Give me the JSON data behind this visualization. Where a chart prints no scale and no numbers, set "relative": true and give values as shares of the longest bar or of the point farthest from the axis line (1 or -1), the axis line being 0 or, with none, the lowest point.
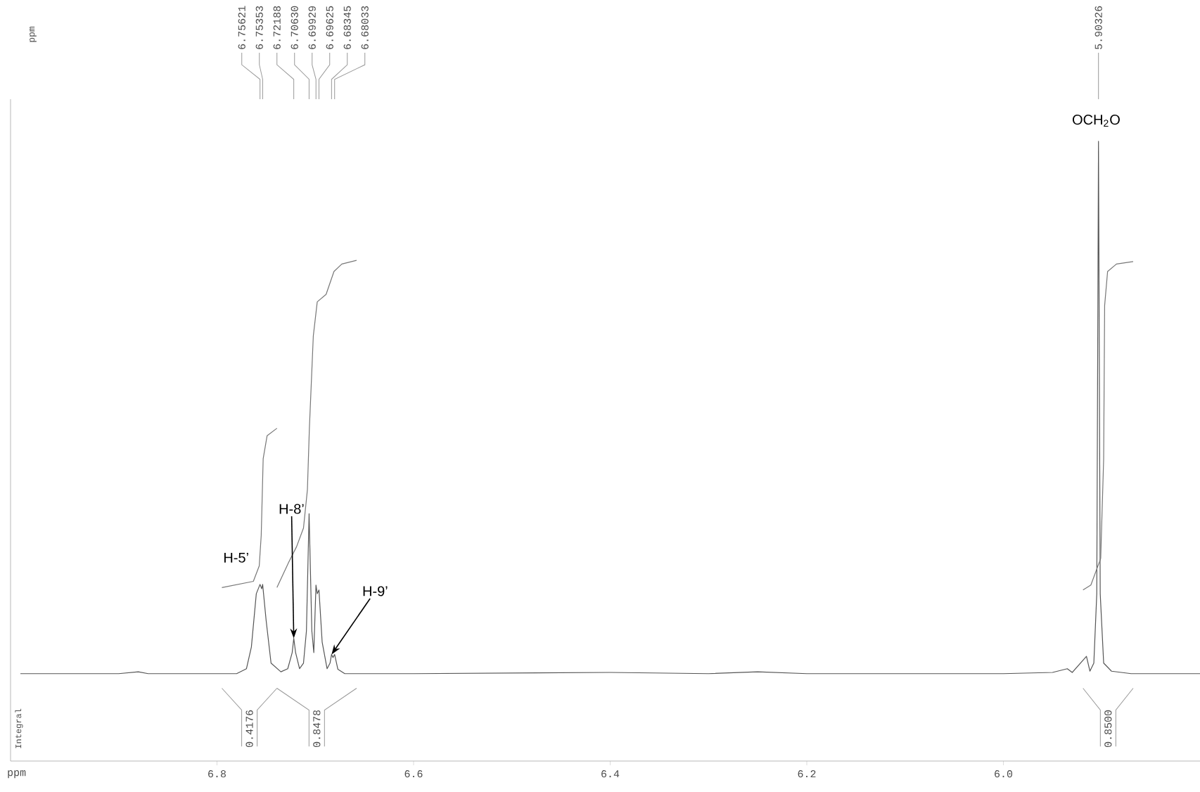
{
  "chart_data": {
    "type": "line",
    "relative": true,
    "xlabel": "ppm",
    "marker": "none",
    "xlim": [
      7.01,
      5.8
    ],
    "xticks": [
      6.8,
      6.6,
      6.4,
      6.2,
      {
        "value": 6,
        "label": "6.0"
      }
    ],
    "series": [
      {
        "color": "#555555",
        "x": [
          7.0,
          6.9,
          6.88,
          6.87,
          6.78,
          6.77,
          6.765,
          6.76,
          6.75621,
          6.7545,
          6.75353,
          6.75,
          6.745,
          6.735,
          6.728,
          6.7235,
          6.72188,
          6.72,
          6.716,
          6.712,
          6.709,
          6.7063,
          6.7035,
          6.7015,
          6.69929,
          6.698,
          6.69625,
          6.693,
          6.688,
          6.685,
          6.68345,
          6.682,
          6.68033,
          6.677,
          6.67,
          6.6,
          6.4,
          6.3,
          6.25,
          6.2,
          6.1,
          6.0,
          5.95,
          5.935,
          5.93,
          5.9155,
          5.912,
          5.908,
          5.905,
          5.90326,
          5.9015,
          5.898,
          5.89,
          5.87,
          5.8
        ],
        "values": [
          0.141,
          0.141,
          0.144,
          0.141,
          0.141,
          0.149,
          0.184,
          0.27,
          0.285,
          0.278,
          0.285,
          0.227,
          0.158,
          0.144,
          0.149,
          0.175,
          0.198,
          0.175,
          0.149,
          0.158,
          0.21,
          0.399,
          0.21,
          0.175,
          0.284,
          0.27,
          0.276,
          0.192,
          0.149,
          0.158,
          0.172,
          0.167,
          0.172,
          0.148,
          0.141,
          0.141,
          0.143,
          0.141,
          0.144,
          0.141,
          0.141,
          0.141,
          0.143,
          0.149,
          0.143,
          0.169,
          0.145,
          0.158,
          0.27,
          1.0,
          0.27,
          0.158,
          0.145,
          0.141,
          0.141
        ]
      },
      {
        "color": "#777777",
        "x": [
          6.795,
          6.763,
          6.757,
          6.755,
          6.753,
          6.749,
          6.739
        ],
        "values": [
          0.28,
          0.29,
          0.315,
          0.364,
          0.488,
          0.525,
          0.537
        ]
      },
      {
        "color": "#777777",
        "x": [
          6.739,
          6.727,
          6.719,
          6.712,
          6.708,
          6.706,
          6.702,
          6.698,
          6.689,
          6.681,
          6.673,
          6.658
        ],
        "values": [
          0.28,
          0.321,
          0.346,
          0.376,
          0.438,
          0.537,
          0.686,
          0.741,
          0.753,
          0.79,
          0.802,
          0.808
        ]
      },
      {
        "color": "#777777",
        "x": [
          5.919,
          5.911,
          5.901,
          5.898,
          5.897,
          5.894,
          5.885,
          5.868
        ],
        "values": [
          0.276,
          0.284,
          0.327,
          0.488,
          0.735,
          0.79,
          0.802,
          0.806
        ]
      }
    ],
    "annotations": [
      "ppm",
      "Integral",
      "0.4176",
      "0.8478",
      "0.8500",
      {
        "text": "6.75621",
        "x": 6.75621
      },
      {
        "text": "6.75353",
        "x": 6.75353
      },
      {
        "text": "6.72188",
        "x": 6.72188
      },
      {
        "text": "6.70630",
        "x": 6.7063
      },
      {
        "text": "6.69929",
        "x": 6.69929
      },
      {
        "text": "6.69625",
        "x": 6.69625
      },
      {
        "text": "6.68345",
        "x": 6.68345
      },
      {
        "text": "6.68033",
        "x": 6.68033
      },
      {
        "text": "5.90326",
        "x": 5.90326
      },
      {
        "text": "H-5’",
        "x": 6.7562,
        "y": 0.285
      },
      {
        "text": "H-8’",
        "x": 6.72188,
        "y": 0.198
      },
      {
        "text": "H-9’",
        "x": 6.68345,
        "y": 0.172
      },
      {
        "text": "OCH$_{2}$O",
        "x": 5.9033,
        "y": 1.0
      }
    ]
  }
}
